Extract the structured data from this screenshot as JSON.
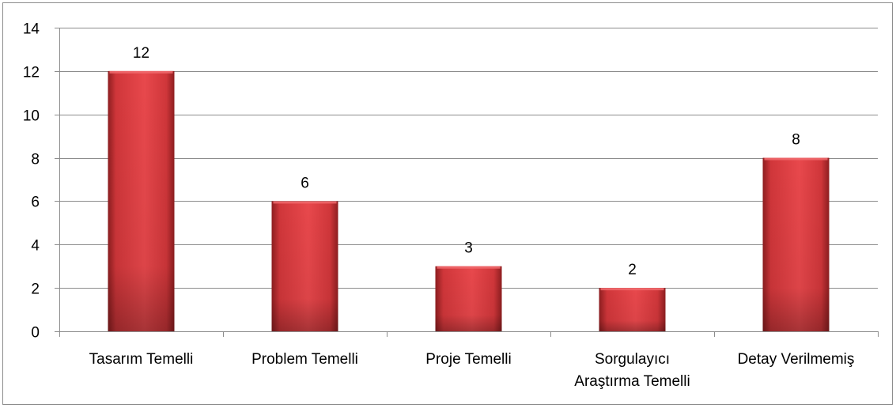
{
  "chart_data": {
    "type": "bar",
    "categories": [
      "Tasarım Temelli",
      "Problem Temelli",
      "Proje Temelli",
      "Sorgulayıcı Araştırma Temelli",
      "Detay Verilmemiş"
    ],
    "category_lines": [
      [
        "Tasarım Temelli"
      ],
      [
        "Problem Temelli"
      ],
      [
        "Proje Temelli"
      ],
      [
        "Sorgulayıcı",
        "Araştırma Temelli"
      ],
      [
        "Detay Verilmemiş"
      ]
    ],
    "values": [
      12,
      6,
      3,
      2,
      8
    ],
    "ylim": [
      0,
      14
    ],
    "yticks": [
      0,
      2,
      4,
      6,
      8,
      10,
      12,
      14
    ],
    "grid": true,
    "legend": "none",
    "data_labels": true,
    "bar_color": "#d0363a",
    "bar_color_light": "#e8484c",
    "bar_color_dark": "#8e1e20",
    "grid_color": "#8c8c8c",
    "title": "",
    "xlabel": "",
    "ylabel": ""
  }
}
